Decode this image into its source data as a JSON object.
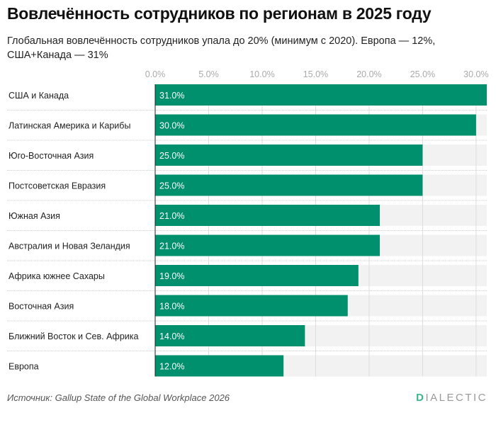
{
  "title": "Вовлечённость сотрудников по регионам в 2025 году",
  "subtitle": "Глобальная вовлечённость сотрудников упала до 20% (минимум с 2020). Европа — 12%, США+Канада — 31%",
  "source": "Источник: Gallup State of the Global Workplace 2026",
  "logo": {
    "first": "D",
    "rest": "IALECTIC"
  },
  "colors": {
    "bar": "#00906e",
    "track": "#f2f2f2",
    "grid": "#dddddd"
  },
  "chart_data": {
    "type": "bar",
    "orientation": "horizontal",
    "categories": [
      "США и Канада",
      "Латинская Америка и Карибы",
      "Юго-Восточная Азия",
      "Постсоветская Евразия",
      "Южная Азия",
      "Австралия и Новая Зеландия",
      "Африка южнее Сахары",
      "Восточная Азия",
      "Ближний Восток и Сев. Африка",
      "Европа"
    ],
    "values": [
      31,
      30,
      25,
      25,
      21,
      21,
      19,
      18,
      14,
      12
    ],
    "value_labels": [
      "31.0%",
      "30.0%",
      "25.0%",
      "25.0%",
      "21.0%",
      "21.0%",
      "19.0%",
      "18.0%",
      "14.0%",
      "12.0%"
    ],
    "xticks": [
      0,
      5,
      10,
      15,
      20,
      25,
      30
    ],
    "xtick_labels": [
      "0.0%",
      "5.0%",
      "10.0%",
      "15.0%",
      "20.0%",
      "25.0%",
      "30.0%"
    ],
    "xlim": [
      0,
      31
    ],
    "grid": true
  }
}
